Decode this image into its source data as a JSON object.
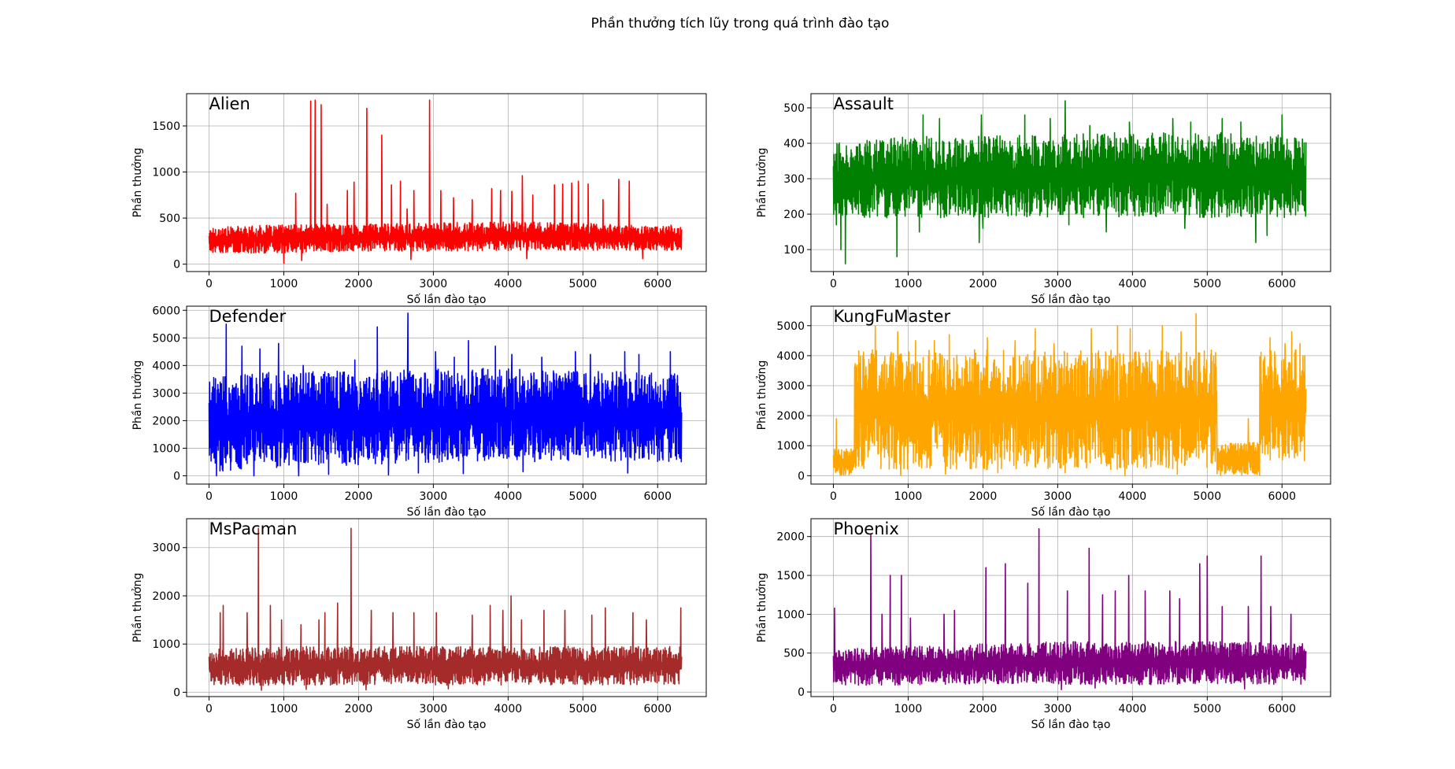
{
  "figure": {
    "title": "Phần thưởng tích lũy trong quá trình đào tạo"
  },
  "chart_data": [
    {
      "type": "line",
      "title": "Alien",
      "xlabel": "Số lần đào tạo",
      "ylabel": "Phần thưởng",
      "xlim": [
        -300,
        6650
      ],
      "ylim": [
        -80,
        1850
      ],
      "xticks": [
        0,
        1000,
        2000,
        3000,
        4000,
        5000,
        6000
      ],
      "yticks": [
        0,
        500,
        1000,
        1500
      ],
      "grid": true,
      "color": "#ff0000",
      "series": [
        {
          "x_range": [
            0,
            6320
          ],
          "band_low": [
            120,
            120,
            140,
            140,
            150,
            150,
            150
          ],
          "band_high": [
            400,
            430,
            440,
            450,
            460,
            440,
            420
          ],
          "dips": [
            [
              1000,
              10
            ],
            [
              1240,
              40
            ],
            [
              2700,
              50
            ],
            [
              4250,
              60
            ],
            [
              5800,
              60
            ]
          ],
          "peaks": [
            [
              1160,
              770
            ],
            [
              1360,
              1770
            ],
            [
              1420,
              1780
            ],
            [
              1500,
              1730
            ],
            [
              1580,
              650
            ],
            [
              1850,
              800
            ],
            [
              1940,
              890
            ],
            [
              2110,
              1690
            ],
            [
              2310,
              1400
            ],
            [
              2440,
              860
            ],
            [
              2560,
              900
            ],
            [
              2650,
              600
            ],
            [
              2740,
              800
            ],
            [
              2950,
              1780
            ],
            [
              3100,
              800
            ],
            [
              3270,
              720
            ],
            [
              3520,
              700
            ],
            [
              3780,
              820
            ],
            [
              3900,
              800
            ],
            [
              4050,
              790
            ],
            [
              4190,
              960
            ],
            [
              4330,
              750
            ],
            [
              4620,
              860
            ],
            [
              4730,
              870
            ],
            [
              4850,
              880
            ],
            [
              4940,
              900
            ],
            [
              5070,
              870
            ],
            [
              5270,
              700
            ],
            [
              5480,
              920
            ],
            [
              5620,
              900
            ],
            [
              5800,
              910
            ]
          ]
        }
      ]
    },
    {
      "type": "line",
      "title": "Assault",
      "xlabel": "Số lần đào tạo",
      "ylabel": "Phần thưởng",
      "xlim": [
        -300,
        6650
      ],
      "ylim": [
        38,
        540
      ],
      "xticks": [
        0,
        1000,
        2000,
        3000,
        4000,
        5000,
        6000
      ],
      "yticks": [
        100,
        200,
        300,
        400,
        500
      ],
      "grid": true,
      "color": "#008000",
      "series": [
        {
          "x_range": [
            0,
            6320
          ],
          "band_low": [
            190,
            190,
            190,
            190,
            190,
            190,
            190
          ],
          "band_high": [
            400,
            420,
            420,
            430,
            430,
            430,
            420
          ],
          "dips": [
            [
              40,
              170
            ],
            [
              100,
              100
            ],
            [
              160,
              60
            ],
            [
              850,
              80
            ],
            [
              1150,
              150
            ],
            [
              1950,
              120
            ],
            [
              2000,
              160
            ],
            [
              3150,
              170
            ],
            [
              3650,
              150
            ],
            [
              4700,
              160
            ],
            [
              5650,
              120
            ],
            [
              5800,
              140
            ]
          ],
          "peaks": [
            [
              1200,
              480
            ],
            [
              1420,
              470
            ],
            [
              1980,
              480
            ],
            [
              2560,
              480
            ],
            [
              2900,
              470
            ],
            [
              3100,
              520
            ],
            [
              3430,
              450
            ],
            [
              3960,
              460
            ],
            [
              4540,
              470
            ],
            [
              4780,
              460
            ],
            [
              5200,
              470
            ],
            [
              5450,
              460
            ],
            [
              6000,
              480
            ]
          ]
        }
      ]
    },
    {
      "type": "line",
      "title": "Defender",
      "xlabel": "Số lần đào tạo",
      "ylabel": "Phần thưởng",
      "xlim": [
        -300,
        6650
      ],
      "ylim": [
        -300,
        6150
      ],
      "xticks": [
        0,
        1000,
        2000,
        3000,
        4000,
        5000,
        6000
      ],
      "yticks": [
        0,
        1000,
        2000,
        3000,
        4000,
        5000,
        6000
      ],
      "grid": true,
      "color": "#0000ff",
      "series": [
        {
          "x_range": [
            0,
            6320
          ],
          "band_low": [
            150,
            300,
            400,
            500,
            500,
            500,
            500
          ],
          "band_high": [
            3600,
            3800,
            3800,
            3900,
            3900,
            3800,
            3700
          ],
          "dips": [
            [
              100,
              0
            ],
            [
              600,
              0
            ],
            [
              1200,
              0
            ],
            [
              1600,
              50
            ],
            [
              2400,
              30
            ],
            [
              2800,
              100
            ],
            [
              3400,
              80
            ],
            [
              4200,
              150
            ],
            [
              5600,
              100
            ]
          ],
          "peaks": [
            [
              230,
              5500
            ],
            [
              440,
              4700
            ],
            [
              680,
              4600
            ],
            [
              930,
              4800
            ],
            [
              1260,
              4000
            ],
            [
              1600,
              4200
            ],
            [
              1950,
              4200
            ],
            [
              2250,
              5400
            ],
            [
              2400,
              5500
            ],
            [
              2660,
              5900
            ],
            [
              3030,
              4500
            ],
            [
              3280,
              4300
            ],
            [
              3470,
              4900
            ],
            [
              3830,
              4700
            ],
            [
              4050,
              4400
            ],
            [
              4450,
              4300
            ],
            [
              4900,
              4500
            ],
            [
              5100,
              4400
            ],
            [
              5560,
              4500
            ],
            [
              5750,
              4400
            ],
            [
              6170,
              4500
            ]
          ]
        }
      ]
    },
    {
      "type": "line",
      "title": "KungFuMaster",
      "xlabel": "Số lần đào tạo",
      "ylabel": "Phần thưởng",
      "xlim": [
        -300,
        6650
      ],
      "ylim": [
        -280,
        5650
      ],
      "xticks": [
        0,
        1000,
        2000,
        3000,
        4000,
        5000,
        6000
      ],
      "yticks": [
        0,
        1000,
        2000,
        3000,
        4000,
        5000
      ],
      "grid": true,
      "color": "#ffa500",
      "series": [
        {
          "segments": [
            {
              "x_range": [
                0,
                280
              ],
              "low": 0,
              "high": 900
            },
            {
              "x_range": [
                280,
                5130
              ],
              "low": 200,
              "high": 4200
            },
            {
              "x_range": [
                5130,
                5700
              ],
              "low": 0,
              "high": 1100
            },
            {
              "x_range": [
                5700,
                6320
              ],
              "low": 500,
              "high": 4200
            }
          ],
          "dips": [
            [
              900,
              0
            ],
            [
              1500,
              50
            ],
            [
              2200,
              100
            ],
            [
              3100,
              100
            ],
            [
              3900,
              0
            ],
            [
              4600,
              50
            ]
          ],
          "peaks": [
            [
              40,
              1900
            ],
            [
              560,
              5000
            ],
            [
              860,
              4800
            ],
            [
              1100,
              4500
            ],
            [
              1350,
              4500
            ],
            [
              1550,
              4700
            ],
            [
              2060,
              4600
            ],
            [
              2430,
              4500
            ],
            [
              2700,
              4900
            ],
            [
              2950,
              4400
            ],
            [
              3450,
              4900
            ],
            [
              3800,
              5000
            ],
            [
              3970,
              4900
            ],
            [
              4400,
              5000
            ],
            [
              4650,
              4800
            ],
            [
              4850,
              5400
            ],
            [
              5550,
              1900
            ],
            [
              5840,
              4600
            ],
            [
              6040,
              4400
            ],
            [
              6130,
              4800
            ],
            [
              6240,
              4400
            ]
          ]
        }
      ]
    },
    {
      "type": "line",
      "title": "MsPacman",
      "xlabel": "Số lần đào tạo",
      "ylabel": "Phần thưởng",
      "xlim": [
        -300,
        6650
      ],
      "ylim": [
        -90,
        3600
      ],
      "xticks": [
        0,
        1000,
        2000,
        3000,
        4000,
        5000,
        6000
      ],
      "yticks": [
        0,
        1000,
        2000,
        3000
      ],
      "grid": true,
      "color": "#a52a2a",
      "series": [
        {
          "x_range": [
            0,
            6320
          ],
          "band_low": [
            140,
            140,
            150,
            150,
            150,
            150,
            150
          ],
          "band_high": [
            900,
            950,
            950,
            950,
            950,
            950,
            950
          ],
          "dips": [
            [
              700,
              40
            ],
            [
              1300,
              60
            ],
            [
              2100,
              50
            ],
            [
              3200,
              70
            ]
          ],
          "peaks": [
            [
              150,
              1650
            ],
            [
              190,
              1800
            ],
            [
              510,
              1650
            ],
            [
              660,
              3400
            ],
            [
              820,
              1800
            ],
            [
              970,
              1500
            ],
            [
              1230,
              1400
            ],
            [
              1470,
              1500
            ],
            [
              1550,
              1650
            ],
            [
              1720,
              1850
            ],
            [
              1900,
              3400
            ],
            [
              2170,
              1700
            ],
            [
              2460,
              1650
            ],
            [
              2740,
              1650
            ],
            [
              3040,
              1650
            ],
            [
              3520,
              1600
            ],
            [
              3760,
              1800
            ],
            [
              3930,
              1700
            ],
            [
              4040,
              2000
            ],
            [
              4180,
              1500
            ],
            [
              4480,
              1700
            ],
            [
              4760,
              1700
            ],
            [
              5120,
              1600
            ],
            [
              5300,
              1750
            ],
            [
              5670,
              1650
            ],
            [
              5850,
              1500
            ],
            [
              6310,
              1750
            ]
          ]
        }
      ]
    },
    {
      "type": "line",
      "title": "Phoenix",
      "xlabel": "Số lần đào tạo",
      "ylabel": "Phần thưởng",
      "xlim": [
        -300,
        6650
      ],
      "ylim": [
        -60,
        2230
      ],
      "xticks": [
        0,
        1000,
        2000,
        3000,
        4000,
        5000,
        6000
      ],
      "yticks": [
        0,
        500,
        1000,
        1500,
        2000
      ],
      "grid": true,
      "color": "#800080",
      "series": [
        {
          "x_range": [
            0,
            6320
          ],
          "band_low": [
            80,
            90,
            100,
            100,
            90,
            100,
            100
          ],
          "band_high": [
            550,
            600,
            620,
            650,
            650,
            650,
            620
          ],
          "dips": [
            [
              3050,
              30
            ],
            [
              3500,
              50
            ],
            [
              5500,
              40
            ]
          ],
          "peaks": [
            [
              15,
              1080
            ],
            [
              500,
              2030
            ],
            [
              650,
              1000
            ],
            [
              760,
              1500
            ],
            [
              910,
              1500
            ],
            [
              1030,
              950
            ],
            [
              1480,
              1000
            ],
            [
              1620,
              1050
            ],
            [
              2040,
              1600
            ],
            [
              2300,
              1650
            ],
            [
              2600,
              1400
            ],
            [
              2750,
              2100
            ],
            [
              3130,
              1300
            ],
            [
              3420,
              1850
            ],
            [
              3600,
              1250
            ],
            [
              3770,
              1300
            ],
            [
              3950,
              1500
            ],
            [
              4170,
              1300
            ],
            [
              4500,
              1300
            ],
            [
              4630,
              1200
            ],
            [
              4900,
              1650
            ],
            [
              5000,
              1750
            ],
            [
              5200,
              1100
            ],
            [
              5550,
              1100
            ],
            [
              5720,
              1750
            ],
            [
              5850,
              1100
            ],
            [
              6120,
              1000
            ]
          ]
        }
      ]
    }
  ]
}
